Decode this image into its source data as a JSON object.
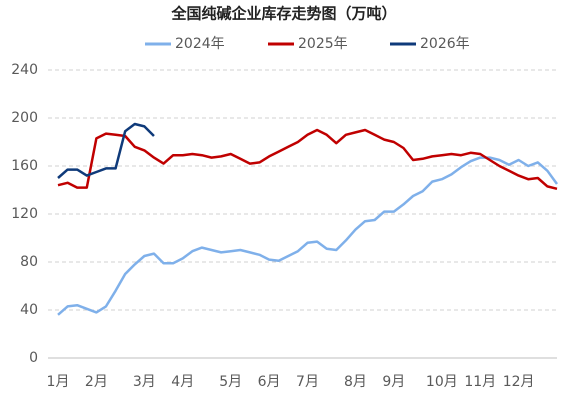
{
  "chart_data": {
    "type": "line",
    "title": "全国纯碱企业库存走势图（万吨）",
    "categories": [
      "1月",
      null,
      null,
      null,
      "2月",
      null,
      null,
      null,
      null,
      "3月",
      null,
      null,
      null,
      "4月",
      null,
      null,
      null,
      null,
      "5月",
      null,
      null,
      null,
      "6月",
      null,
      null,
      null,
      "7月",
      null,
      null,
      null,
      null,
      "8月",
      null,
      null,
      null,
      "9月",
      null,
      null,
      null,
      null,
      "10月",
      null,
      null,
      null,
      "11月",
      null,
      null,
      null,
      "12月",
      null,
      null,
      null,
      null
    ],
    "series": [
      {
        "name": "2024年",
        "color": "#7fb0ea",
        "values": [
          36,
          43,
          44,
          41,
          38,
          43,
          56,
          70,
          78,
          85,
          87,
          79,
          79,
          83,
          89,
          92,
          90,
          88,
          89,
          90,
          88,
          86,
          82,
          81,
          85,
          89,
          96,
          97,
          91,
          90,
          98,
          107,
          114,
          115,
          122,
          122,
          128,
          135,
          139,
          147,
          149,
          153,
          159,
          164,
          167,
          167,
          165,
          161,
          165,
          160,
          163,
          156,
          145
        ]
      },
      {
        "name": "2025年",
        "color": "#c00000",
        "values": [
          144,
          146,
          142,
          142,
          183,
          187,
          186,
          185,
          176,
          173,
          167,
          162,
          169,
          169,
          170,
          169,
          167,
          168,
          170,
          166,
          162,
          163,
          168,
          172,
          176,
          180,
          186,
          190,
          186,
          179,
          186,
          188,
          190,
          186,
          182,
          180,
          175,
          165,
          166,
          168,
          169,
          170,
          169,
          171,
          170,
          165,
          160,
          156,
          152,
          149,
          150,
          143,
          141
        ]
      },
      {
        "name": "2026年",
        "color": "#0f3a7a",
        "values": [
          150,
          157,
          157,
          152,
          155,
          158,
          158,
          189,
          195,
          193,
          185,
          null,
          null,
          null,
          null,
          null,
          null,
          null,
          null,
          null,
          null,
          null,
          null,
          null,
          null,
          null,
          null,
          null,
          null,
          null,
          null,
          null,
          null,
          null,
          null,
          null,
          null,
          null,
          null,
          null,
          null,
          null,
          null,
          null,
          null,
          null,
          null,
          null,
          null,
          null,
          null,
          null,
          null
        ]
      }
    ],
    "ylim": [
      0,
      240
    ],
    "yticks": [
      0,
      40,
      80,
      120,
      160,
      200,
      240
    ],
    "grid": true
  }
}
